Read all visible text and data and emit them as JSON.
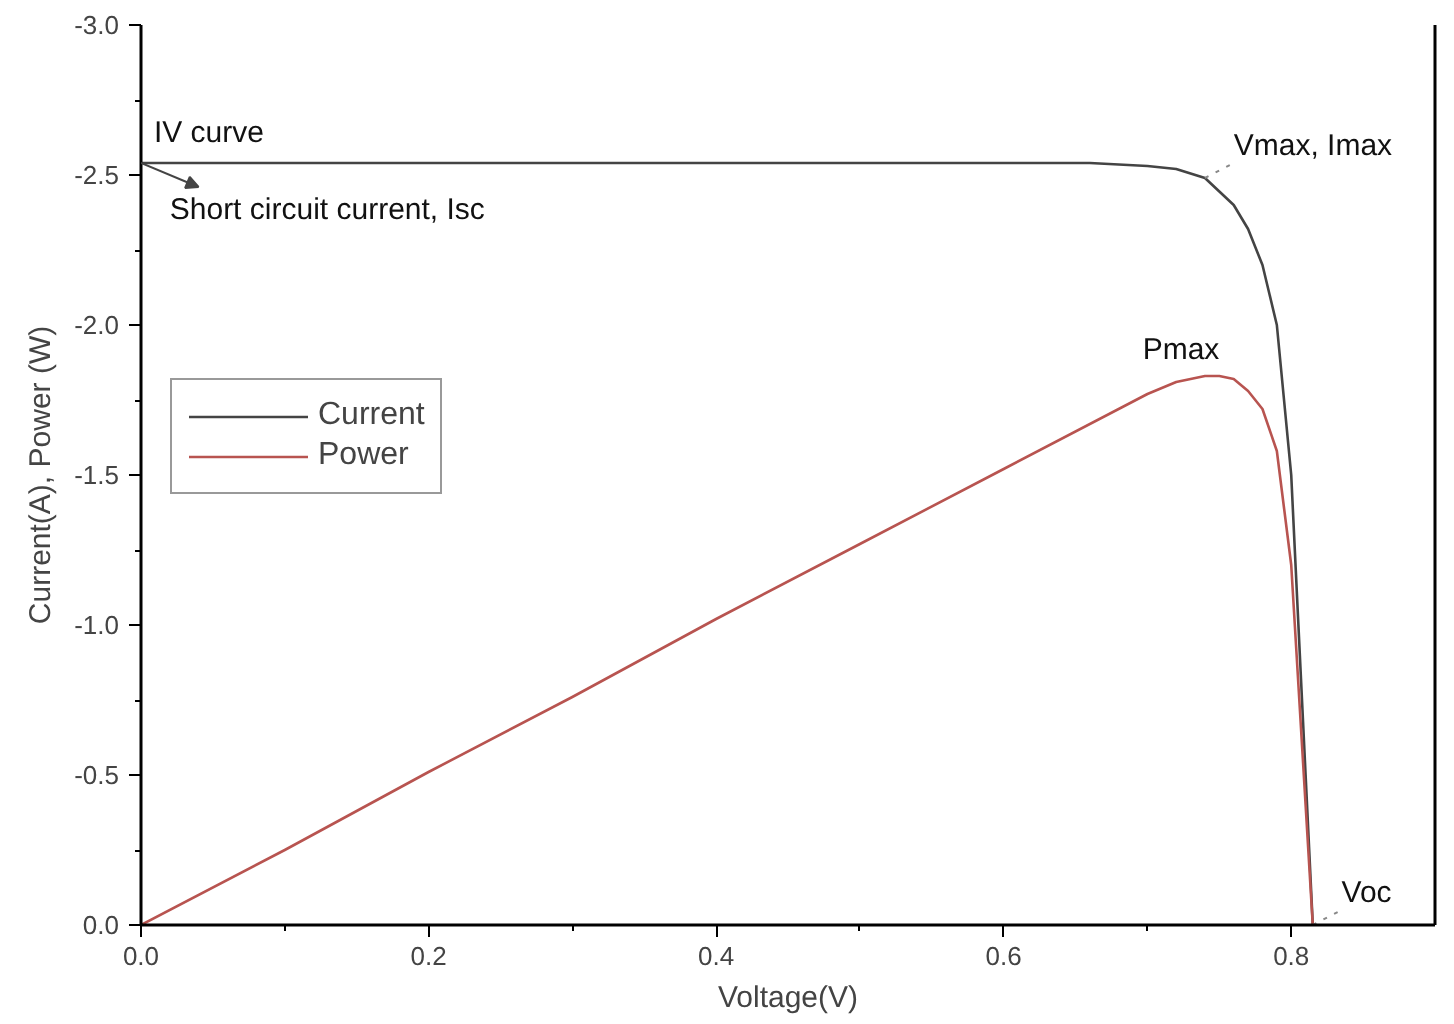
{
  "chart_data": {
    "type": "line",
    "xlabel": "Voltage(V)",
    "ylabel": "Current(A), Power (W)",
    "xlim": [
      0,
      0.9
    ],
    "ylim": [
      0,
      -3.0
    ],
    "xticks": [
      {
        "value": 0,
        "label": "0.0"
      },
      {
        "value": 0.2,
        "label": "0.2"
      },
      {
        "value": 0.4,
        "label": "0.4"
      },
      {
        "value": 0.6,
        "label": "0.6"
      },
      {
        "value": 0.8,
        "label": "0.8"
      }
    ],
    "yticks": [
      {
        "value": 0,
        "label": "0.0"
      },
      {
        "value": -0.5,
        "label": "-0.5"
      },
      {
        "value": -1.0,
        "label": "-1.0"
      },
      {
        "value": -1.5,
        "label": "-1.5"
      },
      {
        "value": -2.0,
        "label": "-2.0"
      },
      {
        "value": -2.5,
        "label": "-2.5"
      },
      {
        "value": -3.0,
        "label": "-3.0"
      }
    ],
    "grid": false,
    "legend": "top left",
    "marker": "none",
    "line_style": "solid",
    "series": [
      {
        "name": "Current",
        "color": "#444444",
        "x": [
          0,
          0.1,
          0.2,
          0.3,
          0.4,
          0.5,
          0.6,
          0.66,
          0.7,
          0.72,
          0.74,
          0.76,
          0.77,
          0.78,
          0.79,
          0.8,
          0.805,
          0.81,
          0.815
        ],
        "values": [
          -2.54,
          -2.54,
          -2.54,
          -2.54,
          -2.54,
          -2.54,
          -2.54,
          -2.54,
          -2.53,
          -2.52,
          -2.49,
          -2.4,
          -2.32,
          -2.2,
          -2.0,
          -1.5,
          -1.0,
          -0.5,
          0
        ]
      },
      {
        "name": "Power",
        "color": "#b85450",
        "x": [
          0,
          0.1,
          0.2,
          0.3,
          0.4,
          0.5,
          0.6,
          0.7,
          0.72,
          0.74,
          0.75,
          0.76,
          0.77,
          0.78,
          0.79,
          0.8,
          0.805,
          0.81,
          0.815
        ],
        "values": [
          0,
          -0.25,
          -0.51,
          -0.76,
          -1.02,
          -1.27,
          -1.52,
          -1.77,
          -1.81,
          -1.83,
          -1.83,
          -1.82,
          -1.78,
          -1.72,
          -1.58,
          -1.2,
          -0.8,
          -0.4,
          0
        ]
      }
    ],
    "annotations": [
      "IV curve",
      {
        "text": "Short circuit current, Isc",
        "x": 0,
        "y": -2.54
      },
      {
        "text": "Vmax, Imax",
        "x": 0.74,
        "y": -2.49
      },
      {
        "text": "Pmax",
        "x": 0.75,
        "y": -1.83
      },
      {
        "text": "Voc",
        "x": 0.815,
        "y": 0
      }
    ]
  }
}
